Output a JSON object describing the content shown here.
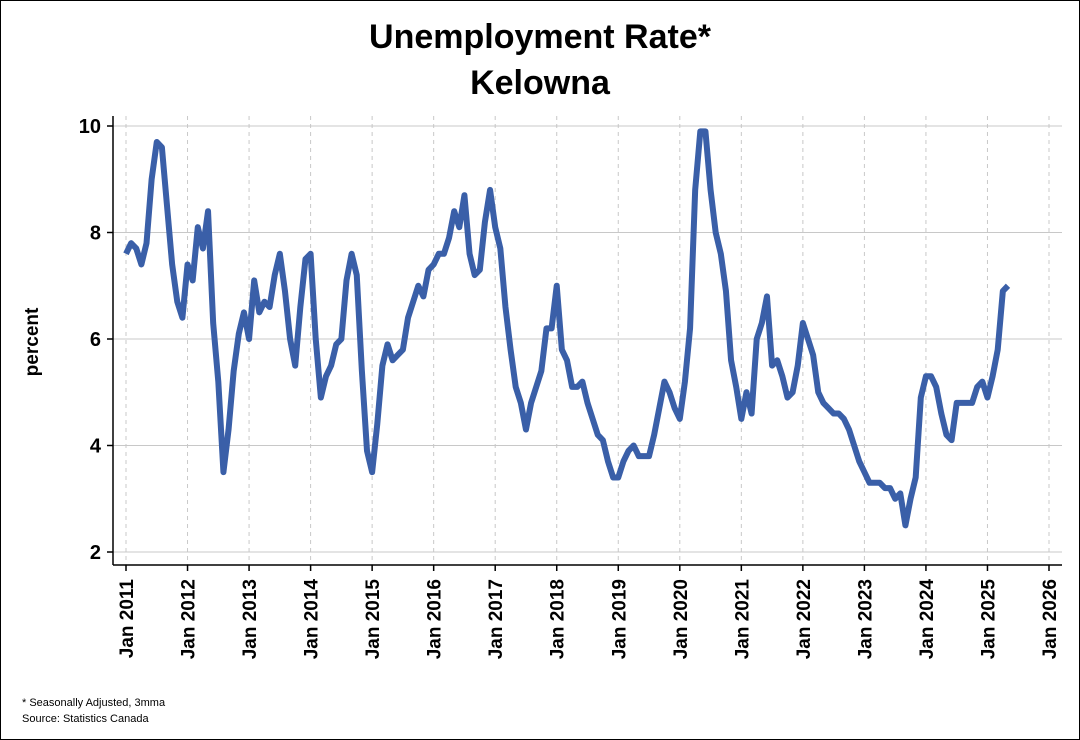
{
  "chart_data": {
    "type": "line",
    "title": "Unemployment Rate*",
    "subtitle": "Kelowna",
    "xlabel": "",
    "ylabel": "percent",
    "ylim": [
      2,
      10
    ],
    "xlim": [
      "2011-01",
      "2026-01"
    ],
    "y_ticks": [
      "2",
      "4",
      "6",
      "8",
      "10"
    ],
    "x_ticks": [
      "Jan 2011",
      "Jan 2012",
      "Jan 2013",
      "Jan 2014",
      "Jan 2015",
      "Jan 2016",
      "Jan 2017",
      "Jan 2018",
      "Jan 2019",
      "Jan 2020",
      "Jan 2021",
      "Jan 2022",
      "Jan 2023",
      "Jan 2024",
      "Jan 2025",
      "Jan 2026"
    ],
    "grid": {
      "y_solid": true,
      "x_dashed": true
    },
    "line_color": "#3a5fa8",
    "footnotes": [
      "* Seasonally Adjusted, 3mma",
      "Source: Statistics Canada"
    ],
    "start": "2011-01",
    "frequency": "monthly",
    "values": [
      7.6,
      7.8,
      7.7,
      7.4,
      7.8,
      9.0,
      9.7,
      9.6,
      8.5,
      7.4,
      6.7,
      6.4,
      7.4,
      7.1,
      8.1,
      7.7,
      8.4,
      6.3,
      5.2,
      3.5,
      4.3,
      5.4,
      6.1,
      6.5,
      6.0,
      7.1,
      6.5,
      6.7,
      6.6,
      7.2,
      7.6,
      6.9,
      6.0,
      5.5,
      6.6,
      7.5,
      7.6,
      6.0,
      4.9,
      5.3,
      5.5,
      5.9,
      6.0,
      7.1,
      7.6,
      7.2,
      5.4,
      3.9,
      3.5,
      4.4,
      5.5,
      5.9,
      5.6,
      5.7,
      5.8,
      6.4,
      6.7,
      7.0,
      6.8,
      7.3,
      7.4,
      7.6,
      7.6,
      7.9,
      8.4,
      8.1,
      8.7,
      7.6,
      7.2,
      7.3,
      8.2,
      8.8,
      8.1,
      7.7,
      6.6,
      5.8,
      5.1,
      4.8,
      4.3,
      4.8,
      5.1,
      5.4,
      6.2,
      6.2,
      7.0,
      5.8,
      5.6,
      5.1,
      5.1,
      5.2,
      4.8,
      4.5,
      4.2,
      4.1,
      3.7,
      3.4,
      3.4,
      3.7,
      3.9,
      4.0,
      3.8,
      3.8,
      3.8,
      4.2,
      4.7,
      5.2,
      5.0,
      4.7,
      4.5,
      5.2,
      6.2,
      8.8,
      9.9,
      9.9,
      8.8,
      8.0,
      7.6,
      6.9,
      5.6,
      5.1,
      4.5,
      5.0,
      4.6,
      6.0,
      6.3,
      6.8,
      5.5,
      5.6,
      5.3,
      4.9,
      5.0,
      5.5,
      6.3,
      6.0,
      5.7,
      5.0,
      4.8,
      4.7,
      4.6,
      4.6,
      4.5,
      4.3,
      4.0,
      3.7,
      3.5,
      3.3,
      3.3,
      3.3,
      3.2,
      3.2,
      3.0,
      3.1,
      2.5,
      3.0,
      3.4,
      4.9,
      5.3,
      5.3,
      5.1,
      4.6,
      4.2,
      4.1,
      4.8,
      4.8,
      4.8,
      4.8,
      5.1,
      5.2,
      4.9,
      5.3,
      5.8,
      6.9,
      7.0
    ]
  }
}
